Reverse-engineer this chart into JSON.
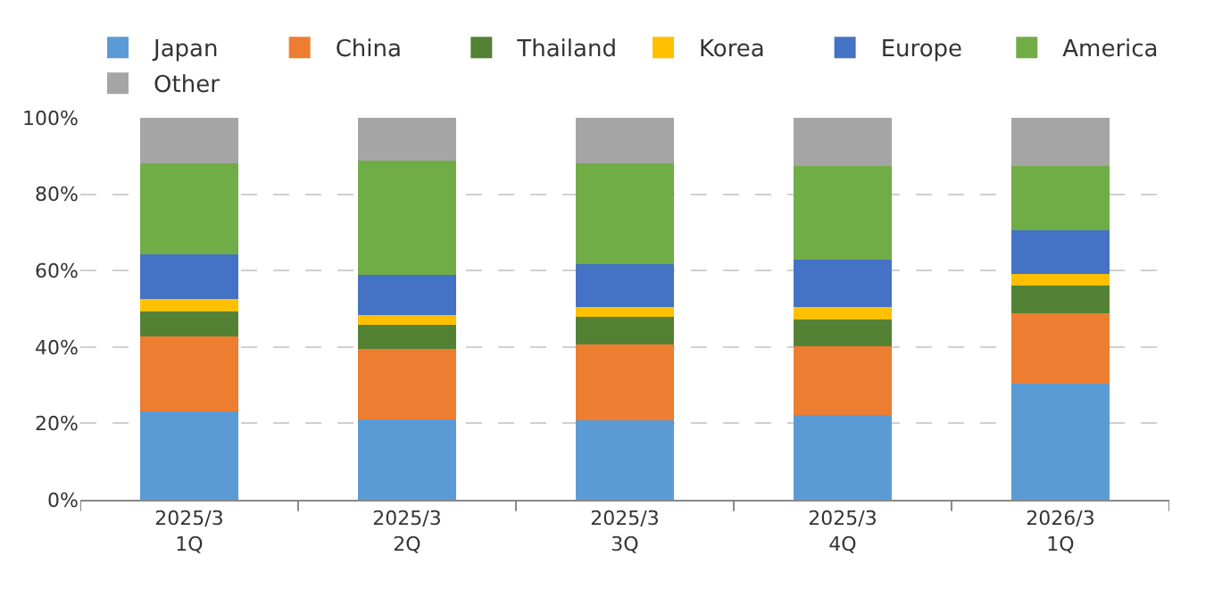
{
  "chart_data": {
    "type": "bar",
    "stacked": true,
    "categories": [
      "2025/3\n1Q",
      "2025/3\n2Q",
      "2025/3\n3Q",
      "2025/3\n4Q",
      "2026/3\n1Q"
    ],
    "series": [
      {
        "name": "Japan",
        "color": "#5b9bd5",
        "values": [
          23.2,
          21.1,
          20.8,
          22.1,
          30.4
        ]
      },
      {
        "name": "China",
        "color": "#ed7d31",
        "values": [
          19.5,
          18.5,
          19.9,
          18.0,
          18.5
        ]
      },
      {
        "name": "Thailand",
        "color": "#548235",
        "values": [
          6.7,
          6.2,
          7.2,
          7.2,
          7.2
        ]
      },
      {
        "name": "Korea",
        "color": "#ffc000",
        "values": [
          3.1,
          2.6,
          2.5,
          3.1,
          3.1
        ]
      },
      {
        "name": "Europe",
        "color": "#4472c4",
        "values": [
          11.8,
          10.4,
          11.3,
          12.5,
          11.3
        ]
      },
      {
        "name": "America",
        "color": "#70ad47",
        "values": [
          23.7,
          29.9,
          26.3,
          24.6,
          17.0
        ]
      },
      {
        "name": "Other",
        "color": "#a5a5a5",
        "values": [
          12.0,
          11.3,
          12.0,
          12.5,
          12.5
        ]
      }
    ],
    "ylim": [
      0,
      100
    ],
    "yticks": [
      {
        "value": 0,
        "label": "0%"
      },
      {
        "value": 20,
        "label": "20%"
      },
      {
        "value": 40,
        "label": "40%"
      },
      {
        "value": 60,
        "label": "60%"
      },
      {
        "value": 80,
        "label": "80%"
      },
      {
        "value": 100,
        "label": "100%"
      }
    ],
    "grid": "y",
    "legend": "top"
  }
}
